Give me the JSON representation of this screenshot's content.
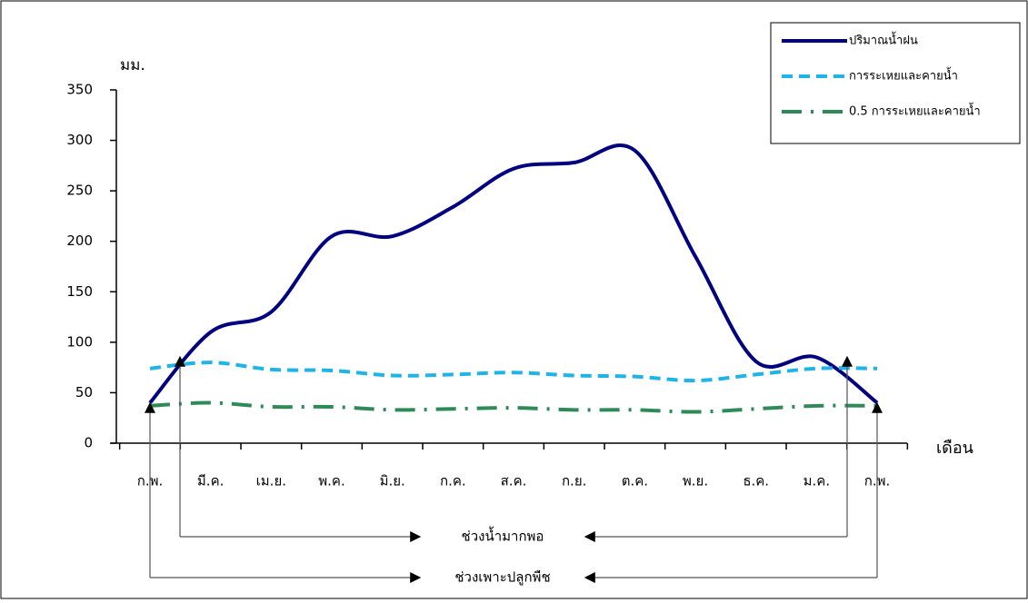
{
  "chart_data": {
    "type": "line",
    "ylabel": "มม.",
    "xlabel": "เดือน",
    "categories": [
      "ก.พ.",
      "มี.ค.",
      "เม.ย.",
      "พ.ค.",
      "มิ.ย.",
      "ก.ค.",
      "ส.ค.",
      "ก.ย.",
      "ต.ค.",
      "พ.ย.",
      "ธ.ค.",
      "ม.ค.",
      "ก.พ."
    ],
    "series": [
      {
        "name": "ปริมาณน้ำฝน",
        "color": "#000080",
        "style": "solid",
        "values": [
          40,
          110,
          130,
          205,
          205,
          234,
          272,
          278,
          290,
          185,
          81,
          85,
          40
        ]
      },
      {
        "name": "การระเหยและคายน้ำ",
        "color": "#1fb4e8",
        "style": "dashed",
        "values": [
          74,
          80,
          73,
          72,
          67,
          68,
          70,
          67,
          66,
          62,
          68,
          74,
          74
        ]
      },
      {
        "name": "0.5 การระเหยและคายน้ำ",
        "color": "#2e8b57",
        "style": "dashdot",
        "values": [
          37,
          40,
          36,
          36,
          33,
          34,
          35,
          33,
          33,
          31,
          34,
          37,
          37
        ]
      }
    ],
    "ylim": [
      0,
      350
    ],
    "yticks": [
      0,
      50,
      100,
      150,
      200,
      250,
      300,
      350
    ],
    "legend": "top-right",
    "annotations": [
      "ช่วงน้ำมากพอ",
      "ช่วงเพาะปลูกพืช"
    ]
  }
}
